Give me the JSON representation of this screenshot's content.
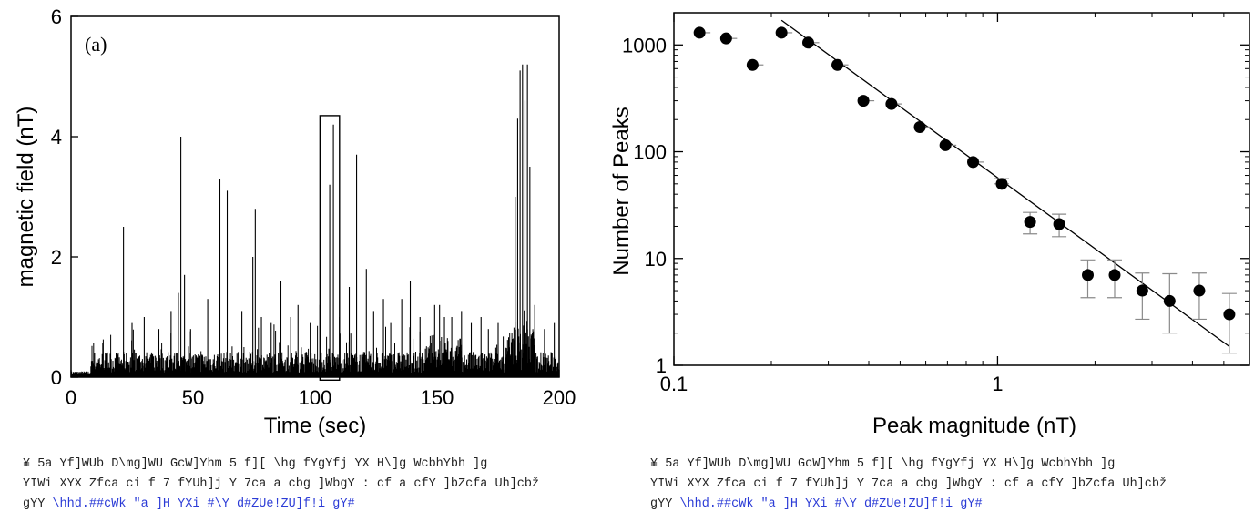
{
  "chart_data": [
    {
      "type": "line",
      "panel_label": "(a)",
      "xlabel": "Time (sec)",
      "ylabel": "magnetic field (nT)",
      "xlim": [
        0,
        200
      ],
      "ylim": [
        0,
        6
      ],
      "x_ticks": [
        "0",
        "50",
        "100",
        "150",
        "200"
      ],
      "y_ticks": [
        "0",
        "2",
        "4",
        "6"
      ],
      "x_tick_values": [
        0,
        50,
        100,
        150,
        200
      ],
      "y_tick_values": [
        0,
        2,
        4,
        6
      ],
      "series": [
        {
          "spikes": [
            {
              "x": 21.5,
              "y": 2.5
            },
            {
              "x": 25.0,
              "y": 0.9
            },
            {
              "x": 30.0,
              "y": 1.0
            },
            {
              "x": 36.0,
              "y": 0.8
            },
            {
              "x": 41.0,
              "y": 1.1
            },
            {
              "x": 44.0,
              "y": 1.4
            },
            {
              "x": 45.0,
              "y": 4.0
            },
            {
              "x": 46.5,
              "y": 1.7
            },
            {
              "x": 49.0,
              "y": 0.8
            },
            {
              "x": 56.0,
              "y": 1.3
            },
            {
              "x": 61.0,
              "y": 3.3
            },
            {
              "x": 64.0,
              "y": 3.1
            },
            {
              "x": 70.0,
              "y": 1.1
            },
            {
              "x": 74.5,
              "y": 2.0
            },
            {
              "x": 75.5,
              "y": 2.8
            },
            {
              "x": 78.0,
              "y": 1.0
            },
            {
              "x": 82.0,
              "y": 0.9
            },
            {
              "x": 86.0,
              "y": 1.6
            },
            {
              "x": 90.0,
              "y": 1.0
            },
            {
              "x": 93.0,
              "y": 1.2
            },
            {
              "x": 98.0,
              "y": 0.9
            },
            {
              "x": 102.0,
              "y": 1.2
            },
            {
              "x": 106.0,
              "y": 3.2
            },
            {
              "x": 107.5,
              "y": 4.2
            },
            {
              "x": 110.0,
              "y": 1.0
            },
            {
              "x": 114.0,
              "y": 1.5
            },
            {
              "x": 117.0,
              "y": 3.7
            },
            {
              "x": 121.0,
              "y": 1.8
            },
            {
              "x": 124.0,
              "y": 1.1
            },
            {
              "x": 128.0,
              "y": 1.3
            },
            {
              "x": 131.0,
              "y": 0.9
            },
            {
              "x": 135.5,
              "y": 1.3
            },
            {
              "x": 139.0,
              "y": 1.6
            },
            {
              "x": 143.0,
              "y": 1.0
            },
            {
              "x": 149.0,
              "y": 1.2
            },
            {
              "x": 151.0,
              "y": 1.2
            },
            {
              "x": 153.0,
              "y": 1.0
            },
            {
              "x": 156.0,
              "y": 1.0
            },
            {
              "x": 160.0,
              "y": 1.1
            },
            {
              "x": 164.0,
              "y": 0.9
            },
            {
              "x": 168.0,
              "y": 1.0
            },
            {
              "x": 171.0,
              "y": 0.8
            },
            {
              "x": 175.0,
              "y": 0.9
            },
            {
              "x": 182.0,
              "y": 3.0
            },
            {
              "x": 183.0,
              "y": 4.3
            },
            {
              "x": 184.0,
              "y": 5.1
            },
            {
              "x": 185.0,
              "y": 5.2
            },
            {
              "x": 186.0,
              "y": 4.6
            },
            {
              "x": 187.0,
              "y": 5.2
            },
            {
              "x": 188.0,
              "y": 3.5
            },
            {
              "x": 190.0,
              "y": 1.2
            },
            {
              "x": 194.0,
              "y": 0.8
            },
            {
              "x": 198.0,
              "y": 0.9
            }
          ],
          "baseline": 0.25
        }
      ],
      "annotations": [
        {
          "shape": "rectangle",
          "x": [
            102,
            110
          ],
          "y": [
            -0.05,
            4.35
          ]
        }
      ]
    },
    {
      "type": "scatter",
      "xlabel": "Peak magnitude (nT)",
      "ylabel": "Number of Peaks",
      "x_scale": "log",
      "y_scale": "log",
      "xlim": [
        0.1,
        6.0
      ],
      "ylim": [
        1,
        2000
      ],
      "x_ticks": [
        "0.1",
        "1"
      ],
      "y_ticks": [
        "1",
        "10",
        "100",
        "1000"
      ],
      "x_tick_values": [
        0.1,
        1
      ],
      "y_tick_values": [
        1,
        10,
        100,
        1000
      ],
      "series": [
        {
          "x": [
            0.12,
            0.145,
            0.175,
            0.215,
            0.26,
            0.32,
            0.385,
            0.47,
            0.575,
            0.69,
            0.84,
            1.03,
            1.26,
            1.55,
            1.9,
            2.3,
            2.8,
            3.4,
            4.2,
            5.2
          ],
          "y": [
            1300,
            1150,
            650,
            1300,
            1050,
            650,
            300,
            280,
            170,
            115,
            80,
            50,
            22,
            21,
            7,
            7,
            5,
            4,
            5,
            3
          ],
          "err_low": [
            0,
            0,
            0,
            0,
            0,
            0,
            0,
            0,
            0,
            0,
            0,
            0,
            5,
            5,
            2.7,
            2.7,
            2.3,
            2,
            2.3,
            1.7
          ],
          "err_high": [
            0,
            0,
            0,
            0,
            0,
            0,
            0,
            0,
            0,
            0,
            0,
            6,
            5,
            5,
            2.7,
            2.7,
            2.3,
            3.2,
            2.3,
            1.7
          ]
        }
      ],
      "fit_line": {
        "x": [
          0.215,
          5.2
        ],
        "y": [
          1700,
          1.5
        ]
      }
    }
  ],
  "captions": {
    "left": {
      "line1": "¥ 5a Yf]WUb D\\mg]WU GcW]Yhm 5 f][ \\hg fYgYfj YX H\\]g WcbhYbh ]g",
      "line2": "YIWi XYX Zfca ci f 7 fYUh]j Y 7ca a cbg  ]WbgY : cf a cfY ]bZcfa Uh]cbž",
      "line3_prefix": "gYY ",
      "line3_link": "\\hhd.##cWk \"a ]H YXi #\\Y d#ZUe!ZU]f!i gY#"
    },
    "right": {
      "line1": "¥ 5a Yf]WUb D\\mg]WU GcW]Yhm 5 f][ \\hg fYgYfj YX H\\]g WcbhYbh ]g",
      "line2": "YIWi XYX Zfca ci f 7 fYUh]j Y 7ca a cbg  ]WbgY : cf a cfY ]bZcfa Uh]cbž",
      "line3_prefix": "gYY ",
      "line3_link": "\\hhd.##cWk \"a ]H YXi #\\Y d#ZUe!ZU]f!i gY#"
    }
  }
}
